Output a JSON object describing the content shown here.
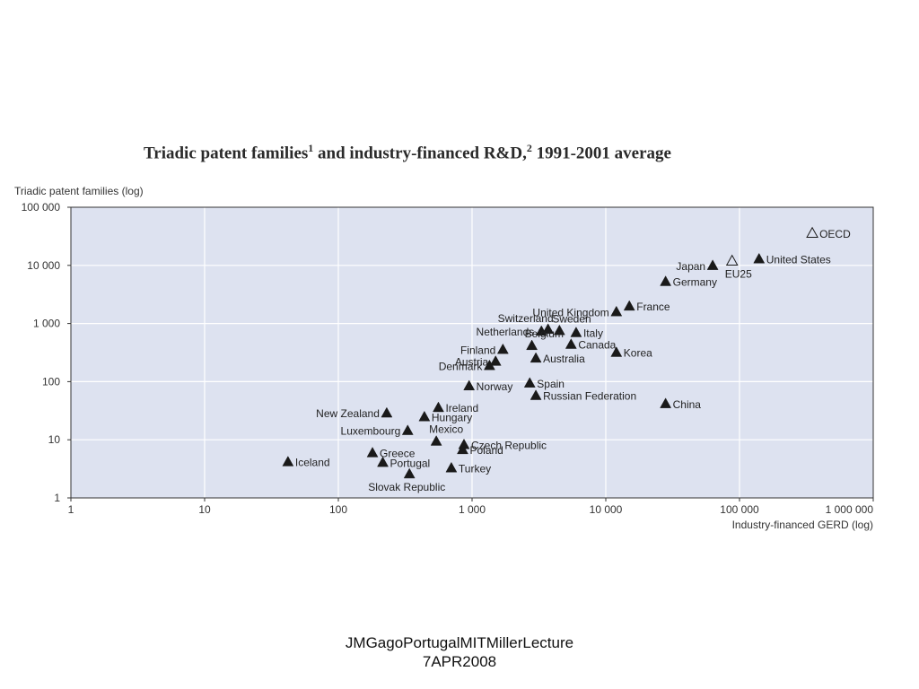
{
  "chart_data": {
    "type": "scatter",
    "title": "Triadic patent families",
    "title_sup1": "1",
    "title_mid": " and industry-financed R&D,",
    "title_sup2": "2",
    "title_end": " 1991-2001 average",
    "xlabel": "Industry-financed GERD (log)",
    "ylabel": "Triadic patent families (log)",
    "x_scale": "log",
    "y_scale": "log",
    "xlim": [
      1,
      1000000
    ],
    "ylim": [
      1,
      100000
    ],
    "x_ticks": [
      {
        "value": 1,
        "label": "1"
      },
      {
        "value": 10,
        "label": "10"
      },
      {
        "value": 100,
        "label": "100"
      },
      {
        "value": 1000,
        "label": "1 000"
      },
      {
        "value": 10000,
        "label": "10 000"
      },
      {
        "value": 100000,
        "label": "100 000"
      },
      {
        "value": 1000000,
        "label": "1 000 000"
      }
    ],
    "y_ticks": [
      {
        "value": 1,
        "label": "1"
      },
      {
        "value": 10,
        "label": "10"
      },
      {
        "value": 100,
        "label": "100"
      },
      {
        "value": 1000,
        "label": "1 000"
      },
      {
        "value": 10000,
        "label": "10 000"
      },
      {
        "value": 100000,
        "label": "100 000"
      }
    ],
    "grid": true,
    "colors": {
      "plot_background": "#dde2f0",
      "grid": "#ffffff",
      "marker": "#1a1a1a",
      "frame": "#333333"
    },
    "points": [
      {
        "name": "OECD",
        "x": 350000,
        "y": 36000,
        "marker": "open-triangle",
        "label_side": "right"
      },
      {
        "name": "United States",
        "x": 140000,
        "y": 13000,
        "marker": "triangle",
        "label_side": "right"
      },
      {
        "name": "EU25",
        "x": 88000,
        "y": 12000,
        "marker": "open-triangle",
        "label_side": "below"
      },
      {
        "name": "Japan",
        "x": 63000,
        "y": 10000,
        "marker": "triangle",
        "label_side": "left"
      },
      {
        "name": "Germany",
        "x": 28000,
        "y": 5300,
        "marker": "triangle",
        "label_side": "right"
      },
      {
        "name": "France",
        "x": 15000,
        "y": 2000,
        "marker": "triangle",
        "label_side": "right"
      },
      {
        "name": "United Kingdom",
        "x": 12000,
        "y": 1600,
        "marker": "triangle",
        "label_side": "left"
      },
      {
        "name": "Switzerland",
        "x": 3700,
        "y": 800,
        "marker": "triangle",
        "label_side": "above-left"
      },
      {
        "name": "Sweden",
        "x": 4500,
        "y": 760,
        "marker": "triangle",
        "label_side": "above"
      },
      {
        "name": "Netherlands",
        "x": 3300,
        "y": 740,
        "marker": "triangle",
        "label_side": "left"
      },
      {
        "name": "Italy",
        "x": 6000,
        "y": 700,
        "marker": "triangle",
        "label_side": "right"
      },
      {
        "name": "Belgium",
        "x": 2800,
        "y": 420,
        "marker": "triangle",
        "label_side": "above"
      },
      {
        "name": "Canada",
        "x": 5500,
        "y": 440,
        "marker": "triangle",
        "label_side": "right"
      },
      {
        "name": "Finland",
        "x": 1700,
        "y": 360,
        "marker": "triangle",
        "label_side": "left"
      },
      {
        "name": "Korea",
        "x": 12000,
        "y": 320,
        "marker": "triangle",
        "label_side": "right"
      },
      {
        "name": "Austria",
        "x": 1500,
        "y": 225,
        "marker": "triangle",
        "label_side": "left"
      },
      {
        "name": "Australia",
        "x": 3000,
        "y": 255,
        "marker": "triangle",
        "label_side": "right"
      },
      {
        "name": "Denmark",
        "x": 1350,
        "y": 190,
        "marker": "triangle",
        "label_side": "left"
      },
      {
        "name": "Norway",
        "x": 950,
        "y": 85,
        "marker": "triangle",
        "label_side": "right"
      },
      {
        "name": "Spain",
        "x": 2700,
        "y": 95,
        "marker": "triangle",
        "label_side": "right"
      },
      {
        "name": "Russian Federation",
        "x": 3000,
        "y": 58,
        "marker": "triangle",
        "label_side": "right"
      },
      {
        "name": "China",
        "x": 28000,
        "y": 42,
        "marker": "triangle",
        "label_side": "right"
      },
      {
        "name": "Ireland",
        "x": 560,
        "y": 36,
        "marker": "triangle",
        "label_side": "right"
      },
      {
        "name": "New Zealand",
        "x": 230,
        "y": 29,
        "marker": "triangle",
        "label_side": "left"
      },
      {
        "name": "Hungary",
        "x": 440,
        "y": 25,
        "marker": "triangle",
        "label_side": "right"
      },
      {
        "name": "Luxembourg",
        "x": 330,
        "y": 14.5,
        "marker": "triangle",
        "label_side": "left"
      },
      {
        "name": "Mexico",
        "x": 540,
        "y": 9.5,
        "marker": "triangle",
        "label_side": "above"
      },
      {
        "name": "Czech Republic",
        "x": 870,
        "y": 8.3,
        "marker": "triangle",
        "label_side": "right"
      },
      {
        "name": "Poland",
        "x": 850,
        "y": 6.8,
        "marker": "triangle",
        "label_side": "right"
      },
      {
        "name": "Greece",
        "x": 180,
        "y": 6,
        "marker": "triangle",
        "label_side": "right"
      },
      {
        "name": "Iceland",
        "x": 42,
        "y": 4.2,
        "marker": "triangle",
        "label_side": "right"
      },
      {
        "name": "Portugal",
        "x": 215,
        "y": 4.1,
        "marker": "triangle",
        "label_side": "right"
      },
      {
        "name": "Turkey",
        "x": 700,
        "y": 3.3,
        "marker": "triangle",
        "label_side": "right"
      },
      {
        "name": "Slovak Republic",
        "x": 340,
        "y": 2.6,
        "marker": "triangle",
        "label_side": "below"
      }
    ]
  },
  "footer": {
    "line1": "JMGagoPortugalMITMillerLecture",
    "line2": "7APR2008"
  }
}
